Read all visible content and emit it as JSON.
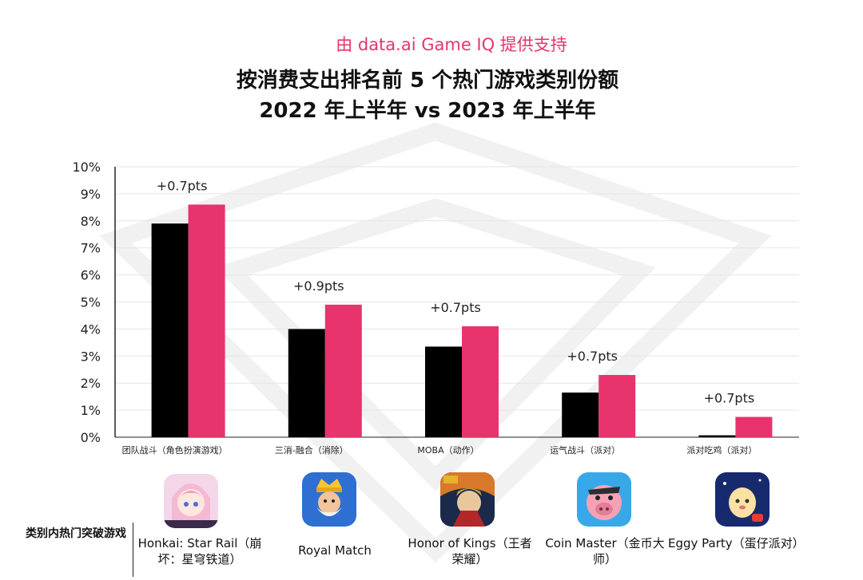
{
  "header": {
    "provider": "由 data.ai Game IQ 提供支持",
    "title_line1": "按消费支出排名前 5 个热门游戏类别份额",
    "title_line2": "2022 年上半年 vs 2023 年上半年"
  },
  "chart_data": {
    "type": "bar",
    "title": "按消费支出排名前 5 个热门游戏类别份额 2022 年上半年 vs 2023 年上半年",
    "categories": [
      "团队战斗（角色扮演游戏）",
      "三消-融合（消除）",
      "MOBA（动作）",
      "运气战斗（派对）",
      "派对吃鸡（派对）"
    ],
    "series": [
      {
        "name": "2022 年上半年",
        "values": [
          7.9,
          4.0,
          3.35,
          1.65,
          0.07
        ],
        "color": "#000000"
      },
      {
        "name": "2023 年上半年",
        "values": [
          8.6,
          4.9,
          4.1,
          2.3,
          0.75
        ],
        "color": "#e8336d"
      }
    ],
    "annotations": [
      "+0.7pts",
      "+0.9pts",
      "+0.7pts",
      "+0.7pts",
      "+0.7pts"
    ],
    "y_ticks": [
      "0%",
      "1%",
      "2%",
      "3%",
      "4%",
      "5%",
      "6%",
      "7%",
      "8%",
      "9%",
      "10%"
    ],
    "ylim": [
      0,
      10
    ],
    "xlabel": "",
    "ylabel": "",
    "grid": true
  },
  "breakout": {
    "row_label": "类别内热门突破游戏",
    "games": [
      {
        "name": "Honkai: Star Rail（崩坏：星穹铁道）",
        "icon": "honkai-star-rail-icon"
      },
      {
        "name": "Royal Match",
        "icon": "royal-match-icon"
      },
      {
        "name": "Honor of Kings（王者荣耀）",
        "icon": "honor-of-kings-icon"
      },
      {
        "name": "Coin Master（金币大师）",
        "icon": "coin-master-icon"
      },
      {
        "name": "Eggy Party（蛋仔派对）",
        "icon": "eggy-party-icon"
      }
    ]
  }
}
